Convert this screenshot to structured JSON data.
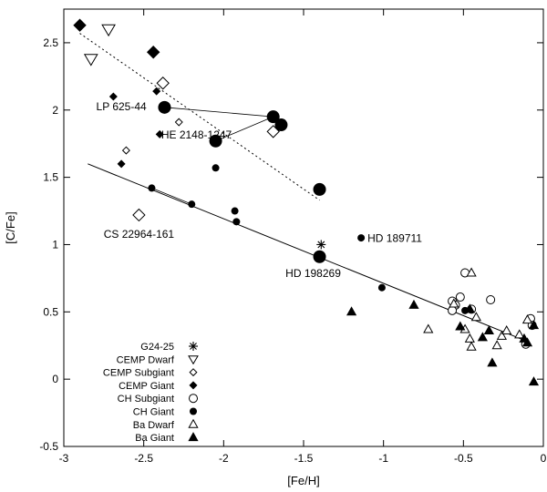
{
  "chart_data": {
    "type": "scatter",
    "xlabel": "[Fe/H]",
    "ylabel": "[C/Fe]",
    "xlim": [
      -3,
      0
    ],
    "ylim": [
      -0.5,
      2.75
    ],
    "xticks": [
      -3,
      -2.5,
      -2,
      -1.5,
      -1,
      -0.5,
      0
    ],
    "xtick_labels": [
      "-3",
      "-2.5",
      "-2",
      "-1.5",
      "-1",
      "-0.5",
      "0"
    ],
    "yticks": [
      -0.5,
      0,
      0.5,
      1,
      1.5,
      2,
      2.5
    ],
    "ytick_labels": [
      "-0.5",
      "0",
      "0.5",
      "1",
      "1.5",
      "2",
      "2.5"
    ],
    "grid": false,
    "legend_position": "bottom-left",
    "series": [
      {
        "name": "G24-25",
        "marker": "asterisk",
        "size": "small",
        "points": [
          [
            -1.39,
            1.0
          ]
        ]
      },
      {
        "name": "CEMP Dwarf",
        "marker": "triangle-down-open",
        "size": "large",
        "points": [
          [
            -2.72,
            2.6
          ],
          [
            -2.83,
            2.38
          ]
        ]
      },
      {
        "name": "CEMP Subgiant",
        "marker": "diamond-open",
        "size": "mixed",
        "points": [
          [
            -2.38,
            2.2,
            "large"
          ],
          [
            -2.28,
            1.91,
            "small"
          ],
          [
            -2.61,
            1.7,
            "small"
          ],
          [
            -2.53,
            1.22,
            "large"
          ],
          [
            -1.69,
            1.84,
            "large"
          ]
        ]
      },
      {
        "name": "CEMP Giant",
        "marker": "diamond-filled",
        "size": "mixed",
        "points": [
          [
            -2.9,
            2.63,
            "large"
          ],
          [
            -2.44,
            2.43,
            "large"
          ],
          [
            -2.69,
            2.1,
            "small"
          ],
          [
            -2.42,
            2.14,
            "small"
          ],
          [
            -2.4,
            1.82,
            "small"
          ],
          [
            -2.64,
            1.6,
            "small"
          ]
        ]
      },
      {
        "name": "CH Subgiant",
        "marker": "circle-open",
        "size": "small",
        "points": [
          [
            -0.49,
            0.79
          ],
          [
            -0.52,
            0.61
          ],
          [
            -0.57,
            0.58
          ],
          [
            -0.55,
            0.55
          ],
          [
            -0.57,
            0.51
          ],
          [
            -0.45,
            0.52
          ],
          [
            -0.33,
            0.59
          ],
          [
            -0.08,
            0.45
          ],
          [
            -0.07,
            0.4
          ],
          [
            -0.11,
            0.26
          ]
        ]
      },
      {
        "name": "CH Giant",
        "marker": "circle-filled",
        "size": "mixed",
        "points": [
          [
            -2.37,
            2.02,
            "large"
          ],
          [
            -1.69,
            1.95,
            "large"
          ],
          [
            -1.64,
            1.89,
            "large"
          ],
          [
            -2.05,
            1.77,
            "large"
          ],
          [
            -1.4,
            1.41,
            "large"
          ],
          [
            -1.4,
            0.91,
            "large"
          ],
          [
            -2.05,
            1.57,
            "small"
          ],
          [
            -2.45,
            1.42,
            "small"
          ],
          [
            -2.2,
            1.3,
            "small"
          ],
          [
            -1.93,
            1.25,
            "small"
          ],
          [
            -1.92,
            1.17,
            "small"
          ],
          [
            -1.14,
            1.05,
            "small"
          ],
          [
            -1.01,
            0.68,
            "small"
          ],
          [
            -0.49,
            0.51,
            "small"
          ]
        ]
      },
      {
        "name": "Ba Dwarf",
        "marker": "triangle-up-open",
        "size": "small",
        "points": [
          [
            -0.45,
            0.79
          ],
          [
            -0.72,
            0.37
          ],
          [
            -0.56,
            0.56
          ],
          [
            -0.49,
            0.37
          ],
          [
            -0.46,
            0.3
          ],
          [
            -0.45,
            0.24
          ],
          [
            -0.42,
            0.46
          ],
          [
            -0.29,
            0.25
          ],
          [
            -0.26,
            0.32
          ],
          [
            -0.23,
            0.36
          ],
          [
            -0.15,
            0.33
          ],
          [
            -0.1,
            0.44
          ]
        ]
      },
      {
        "name": "Ba Giant",
        "marker": "triangle-up-filled",
        "size": "small",
        "points": [
          [
            -1.2,
            0.5
          ],
          [
            -0.81,
            0.55
          ],
          [
            -0.52,
            0.39
          ],
          [
            -0.46,
            0.52
          ],
          [
            -0.38,
            0.31
          ],
          [
            -0.34,
            0.36
          ],
          [
            -0.32,
            0.12
          ],
          [
            -0.12,
            0.3
          ],
          [
            -0.1,
            0.27
          ],
          [
            -0.06,
            0.4
          ],
          [
            -0.06,
            -0.02
          ]
        ]
      }
    ],
    "fits": [
      {
        "name": "solid-fit",
        "style": "solid",
        "x": [
          -2.85,
          -0.1
        ],
        "y": [
          1.6,
          0.28
        ]
      },
      {
        "name": "dotted-fit",
        "style": "dotted",
        "x": [
          -2.9,
          -1.4
        ],
        "y": [
          2.57,
          1.33
        ]
      }
    ],
    "connectors": [
      {
        "x": [
          -2.37,
          -1.69
        ],
        "y": [
          2.02,
          1.95
        ]
      },
      {
        "x": [
          -2.05,
          -1.69
        ],
        "y": [
          1.77,
          1.95
        ]
      },
      {
        "x": [
          -2.45,
          -2.2
        ],
        "y": [
          1.42,
          1.3
        ]
      }
    ],
    "annotations": [
      {
        "text": "LP 625-44",
        "x": -2.64,
        "y": 2.0,
        "anchor": "middle"
      },
      {
        "text": "HE 2148-1247",
        "x": -2.17,
        "y": 1.79,
        "anchor": "middle"
      },
      {
        "text": "CS 22964-161",
        "x": -2.53,
        "y": 1.05,
        "anchor": "middle"
      },
      {
        "text": "HD 189711",
        "x": -1.1,
        "y": 1.02,
        "anchor": "start"
      },
      {
        "text": "HD 198269",
        "x": -1.44,
        "y": 0.76,
        "anchor": "middle"
      }
    ]
  }
}
